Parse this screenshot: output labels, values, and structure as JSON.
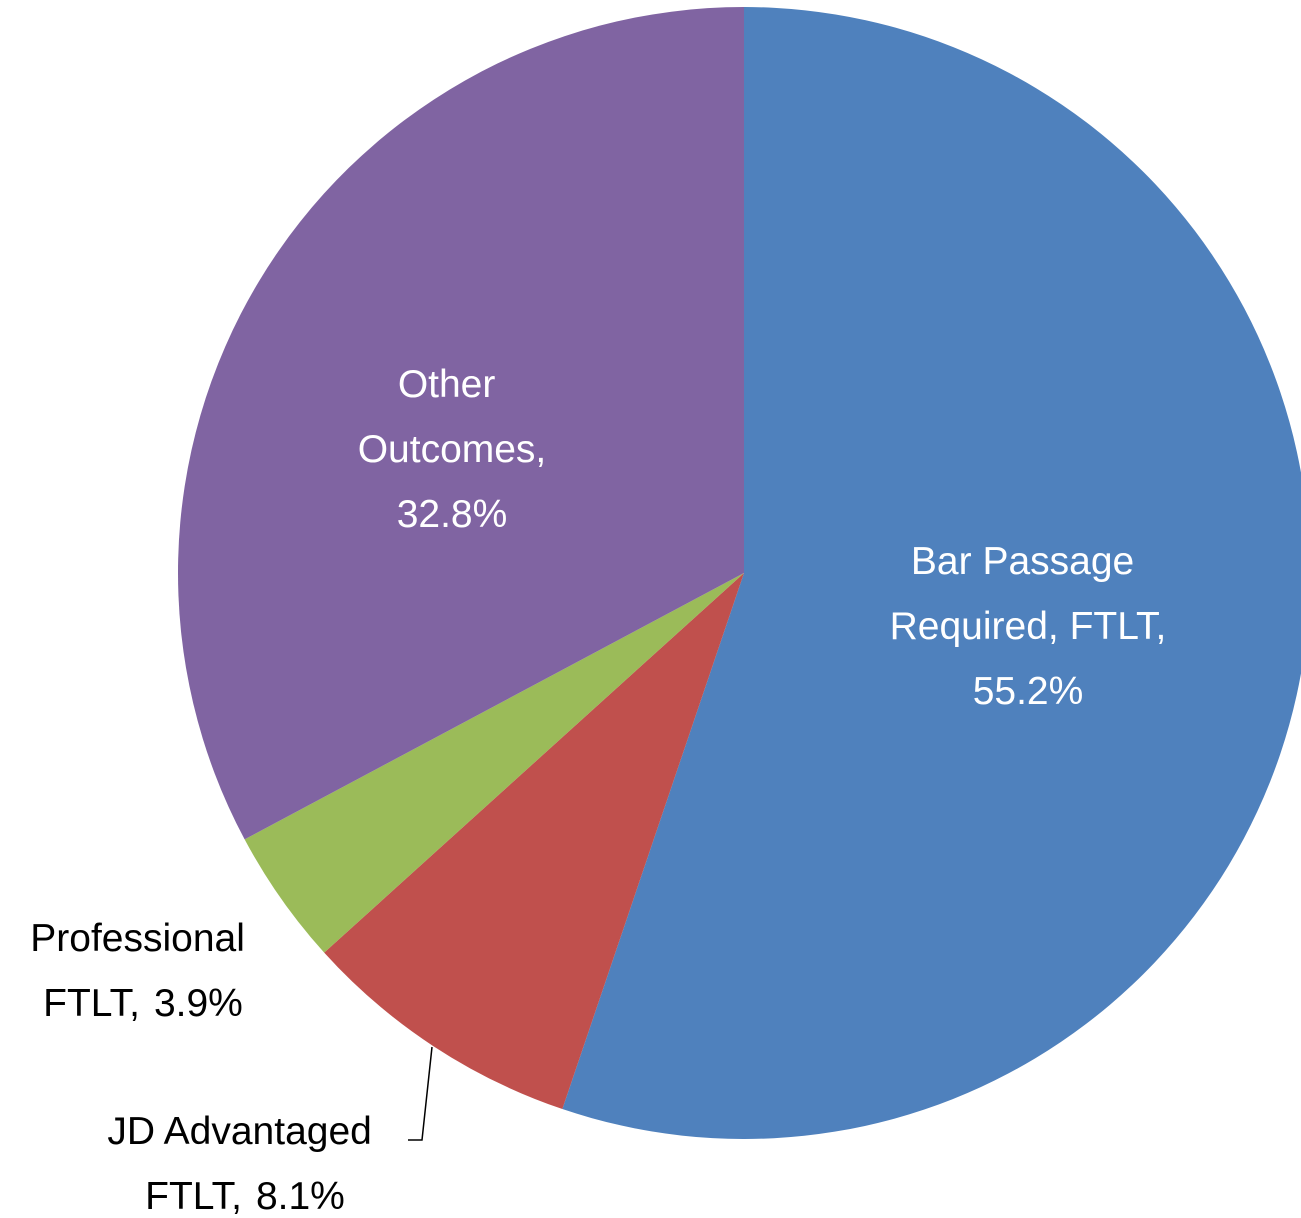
{
  "chart_data": {
    "type": "pie",
    "categories": [
      "Bar Passage Required, FTLT,",
      "JD Advantaged FTLT,",
      "Professional FTLT,",
      "Other Outcomes,"
    ],
    "values": [
      55.2,
      8.1,
      3.9,
      32.8
    ],
    "value_labels": [
      "55.2%",
      "8.1%",
      "3.9%",
      "32.8%"
    ],
    "colors": [
      "#4f81bd",
      "#c0504d",
      "#9bbb59",
      "#8064a2"
    ]
  }
}
